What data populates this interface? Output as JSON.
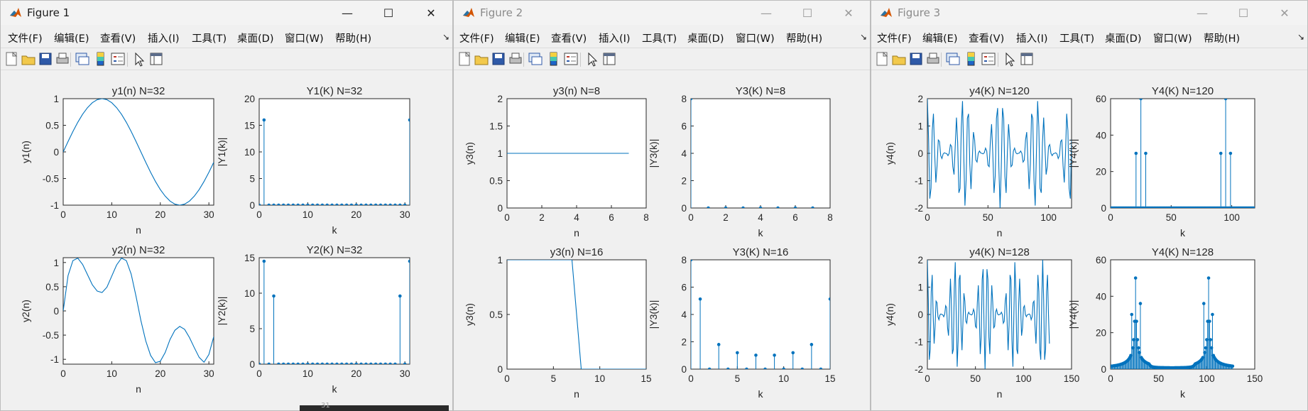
{
  "menu": [
    "文件(F)",
    "编辑(E)",
    "查看(V)",
    "插入(I)",
    "工具(T)",
    "桌面(D)",
    "窗口(W)",
    "帮助(H)"
  ],
  "toolbar_icons": [
    "new-figure-icon",
    "open-file-icon",
    "save-icon",
    "print-icon",
    "link-plot-icon",
    "colorbar-icon",
    "legend-icon",
    "edit-plot-icon",
    "property-inspector-icon"
  ],
  "background_fragment": {
    "text": "31"
  },
  "windows": [
    {
      "title": "Figure 1",
      "active": true,
      "axes": [
        {
          "title": "y1(n) N=32",
          "xlabel": "n",
          "ylabel": "y1(n)",
          "xlim": [
            0,
            31
          ],
          "ylim": [
            -1,
            1
          ],
          "xticks": [
            "0",
            "10",
            "20",
            "30"
          ],
          "yticks": [
            "-1",
            "-0.5",
            "0",
            "0.5",
            "1"
          ]
        },
        {
          "title": "Y1(K) N=32",
          "xlabel": "k",
          "ylabel": "|Y1(k)|",
          "xlim": [
            0,
            31
          ],
          "ylim": [
            0,
            20
          ],
          "xticks": [
            "0",
            "10",
            "20",
            "30"
          ],
          "yticks": [
            "0",
            "5",
            "10",
            "15",
            "20"
          ]
        },
        {
          "title": "y2(n) N=32",
          "xlabel": "n",
          "ylabel": "y2(n)",
          "xlim": [
            0,
            31
          ],
          "ylim": [
            -1.1,
            1.1
          ],
          "xticks": [
            "0",
            "10",
            "20",
            "30"
          ],
          "yticks": [
            "-1",
            "-0.5",
            "0",
            "0.5",
            "1"
          ]
        },
        {
          "title": "Y2(K) N=32",
          "xlabel": "k",
          "ylabel": "|Y2(k)|",
          "xlim": [
            0,
            31
          ],
          "ylim": [
            0,
            15
          ],
          "xticks": [
            "0",
            "10",
            "20",
            "30"
          ],
          "yticks": [
            "0",
            "5",
            "10",
            "15"
          ]
        }
      ]
    },
    {
      "title": "Figure 2",
      "active": false,
      "axes": [
        {
          "title": "y3(n) N=8",
          "xlabel": "n",
          "ylabel": "y3(n)",
          "xlim": [
            0,
            8
          ],
          "ylim": [
            0,
            2
          ],
          "xticks": [
            "0",
            "2",
            "4",
            "6",
            "8"
          ],
          "yticks": [
            "0",
            "0.5",
            "1",
            "1.5",
            "2"
          ]
        },
        {
          "title": "Y3(K) N=8",
          "xlabel": "k",
          "ylabel": "|Y3(k)|",
          "xlim": [
            0,
            8
          ],
          "ylim": [
            0,
            8
          ],
          "xticks": [
            "0",
            "2",
            "4",
            "6",
            "8"
          ],
          "yticks": [
            "0",
            "2",
            "4",
            "6",
            "8"
          ]
        },
        {
          "title": "y3(n) N=16",
          "xlabel": "n",
          "ylabel": "y3(n)",
          "xlim": [
            0,
            15
          ],
          "ylim": [
            0,
            1
          ],
          "xticks": [
            "0",
            "5",
            "10",
            "15"
          ],
          "yticks": [
            "0",
            "0.5",
            "1"
          ]
        },
        {
          "title": "Y3(K) N=16",
          "xlabel": "k",
          "ylabel": "|Y3(k)|",
          "xlim": [
            0,
            15
          ],
          "ylim": [
            0,
            8
          ],
          "xticks": [
            "0",
            "5",
            "10",
            "15"
          ],
          "yticks": [
            "0",
            "2",
            "4",
            "6",
            "8"
          ]
        }
      ]
    },
    {
      "title": "Figure 3",
      "active": false,
      "axes": [
        {
          "title": "y4(K) N=120",
          "xlabel": "n",
          "ylabel": "y4(n)",
          "xlim": [
            0,
            119
          ],
          "ylim": [
            -2,
            2
          ],
          "xticks": [
            "0",
            "50",
            "100"
          ],
          "yticks": [
            "-2",
            "-1",
            "0",
            "1",
            "2"
          ]
        },
        {
          "title": "Y4(K) N=120",
          "xlabel": "k",
          "ylabel": "|Y4(k)|",
          "xlim": [
            0,
            119
          ],
          "ylim": [
            0,
            60
          ],
          "xticks": [
            "0",
            "50",
            "100"
          ],
          "yticks": [
            "0",
            "20",
            "40",
            "60"
          ]
        },
        {
          "title": "y4(K) N=128",
          "xlabel": "n",
          "ylabel": "y4(n)",
          "xlim": [
            0,
            150
          ],
          "ylim": [
            -2,
            2
          ],
          "xticks": [
            "0",
            "50",
            "100",
            "150"
          ],
          "yticks": [
            "-2",
            "-1",
            "0",
            "1",
            "2"
          ]
        },
        {
          "title": "Y4(K) N=128",
          "xlabel": "k",
          "ylabel": "|Y4(k)|",
          "xlim": [
            0,
            150
          ],
          "ylim": [
            0,
            60
          ],
          "xticks": [
            "0",
            "50",
            "100",
            "150"
          ],
          "yticks": [
            "0",
            "20",
            "40",
            "60"
          ]
        }
      ]
    }
  ],
  "chart_data": [
    {
      "type": "line",
      "title": "y1(n) N=32",
      "xlabel": "n",
      "ylabel": "y1(n)",
      "xlim": [
        0,
        31
      ],
      "ylim": [
        -1,
        1
      ],
      "x": [
        0,
        1,
        2,
        3,
        4,
        5,
        6,
        7,
        8,
        9,
        10,
        11,
        12,
        13,
        14,
        15,
        16,
        17,
        18,
        19,
        20,
        21,
        22,
        23,
        24,
        25,
        26,
        27,
        28,
        29,
        30,
        31
      ],
      "y": [
        0,
        0.195,
        0.383,
        0.556,
        0.707,
        0.831,
        0.924,
        0.981,
        1,
        0.981,
        0.924,
        0.831,
        0.707,
        0.556,
        0.383,
        0.195,
        0,
        -0.195,
        -0.383,
        -0.556,
        -0.707,
        -0.831,
        -0.924,
        -0.981,
        -1,
        -0.981,
        -0.924,
        -0.831,
        -0.707,
        -0.556,
        -0.383,
        -0.195
      ]
    },
    {
      "type": "stem",
      "title": "Y1(K) N=32",
      "xlabel": "k",
      "ylabel": "|Y1(k)|",
      "xlim": [
        0,
        31
      ],
      "ylim": [
        0,
        20
      ],
      "x": [
        0,
        1,
        2,
        3,
        4,
        5,
        6,
        7,
        8,
        9,
        10,
        11,
        12,
        13,
        14,
        15,
        16,
        17,
        18,
        19,
        20,
        21,
        22,
        23,
        24,
        25,
        26,
        27,
        28,
        29,
        30,
        31
      ],
      "y": [
        0,
        16,
        0,
        0,
        0,
        0,
        0,
        0,
        0,
        0,
        0,
        0,
        0,
        0,
        0,
        0,
        0,
        0,
        0,
        0,
        0,
        0,
        0,
        0,
        0,
        0,
        0,
        0,
        0,
        0,
        0,
        16
      ]
    },
    {
      "type": "line",
      "title": "y2(n) N=32",
      "xlabel": "n",
      "ylabel": "y2(n)",
      "xlim": [
        0,
        31
      ],
      "ylim": [
        -1.1,
        1.1
      ],
      "x": [
        0,
        1,
        2,
        3,
        4,
        5,
        6,
        7,
        8,
        9,
        10,
        11,
        12,
        13,
        14,
        15,
        16,
        17,
        18,
        19,
        20,
        21,
        22,
        23,
        24,
        25,
        26,
        27,
        28,
        29,
        30,
        31
      ],
      "y": [
        0,
        0.73,
        1.04,
        1.09,
        0.96,
        0.75,
        0.54,
        0.41,
        0.38,
        0.49,
        0.72,
        0.95,
        1.09,
        1.04,
        0.76,
        0.3,
        -0.2,
        -0.62,
        -0.92,
        -1.07,
        -1.04,
        -0.86,
        -0.59,
        -0.4,
        -0.32,
        -0.38,
        -0.55,
        -0.76,
        -0.96,
        -1.06,
        -0.9,
        -0.53
      ]
    },
    {
      "type": "stem",
      "title": "Y2(K) N=32",
      "xlabel": "k",
      "ylabel": "|Y2(k)|",
      "xlim": [
        0,
        31
      ],
      "ylim": [
        0,
        15
      ],
      "x": [
        0,
        1,
        2,
        3,
        4,
        5,
        6,
        7,
        8,
        9,
        10,
        11,
        12,
        13,
        14,
        15,
        16,
        17,
        18,
        19,
        20,
        21,
        22,
        23,
        24,
        25,
        26,
        27,
        28,
        29,
        30,
        31
      ],
      "y": [
        0,
        14.5,
        0,
        9.6,
        0,
        0,
        0,
        0,
        0,
        0,
        0,
        0,
        0,
        0,
        0,
        0,
        0,
        0,
        0,
        0,
        0,
        0,
        0,
        0,
        0,
        0,
        0,
        0,
        0,
        9.6,
        0,
        14.5
      ]
    },
    {
      "type": "line",
      "title": "y3(n) N=8",
      "xlabel": "n",
      "ylabel": "y3(n)",
      "xlim": [
        0,
        8
      ],
      "ylim": [
        0,
        2
      ],
      "x": [
        0,
        1,
        2,
        3,
        4,
        5,
        6,
        7
      ],
      "y": [
        1,
        1,
        1,
        1,
        1,
        1,
        1,
        1
      ]
    },
    {
      "type": "stem",
      "title": "Y3(K) N=8",
      "xlabel": "k",
      "ylabel": "|Y3(k)|",
      "xlim": [
        0,
        8
      ],
      "ylim": [
        0,
        8
      ],
      "x": [
        0,
        1,
        2,
        3,
        4,
        5,
        6,
        7
      ],
      "y": [
        8,
        0,
        0,
        0,
        0,
        0,
        0,
        0
      ]
    },
    {
      "type": "line",
      "title": "y3(n) N=16",
      "xlabel": "n",
      "ylabel": "y3(n)",
      "xlim": [
        0,
        15
      ],
      "ylim": [
        0,
        1
      ],
      "x": [
        0,
        1,
        2,
        3,
        4,
        5,
        6,
        7,
        8,
        9,
        10,
        11,
        12,
        13,
        14,
        15
      ],
      "y": [
        1,
        1,
        1,
        1,
        1,
        1,
        1,
        1,
        0,
        0,
        0,
        0,
        0,
        0,
        0,
        0
      ]
    },
    {
      "type": "stem",
      "title": "Y3(K) N=16",
      "xlabel": "k",
      "ylabel": "|Y3(k)|",
      "xlim": [
        0,
        15
      ],
      "ylim": [
        0,
        8
      ],
      "x": [
        0,
        1,
        2,
        3,
        4,
        5,
        6,
        7,
        8,
        9,
        10,
        11,
        12,
        13,
        14,
        15
      ],
      "y": [
        8,
        5.13,
        0,
        1.8,
        0,
        1.2,
        0,
        1.02,
        0,
        1.02,
        0,
        1.2,
        0,
        1.8,
        0,
        5.13
      ]
    },
    {
      "type": "line",
      "title": "y4(K) N=120",
      "xlabel": "n",
      "ylabel": "y4(n)",
      "xlim": [
        0,
        119
      ],
      "ylim": [
        -2,
        2
      ],
      "x_range": [
        0,
        119
      ],
      "formula": "cos(2*pi*25*n/120)+0.5*cos(2*pi*21*n/120)+0.5*cos(2*pi*29*n/120)"
    },
    {
      "type": "stem",
      "title": "Y4(K) N=120",
      "xlabel": "k",
      "ylabel": "|Y4(k)|",
      "xlim": [
        0,
        119
      ],
      "ylim": [
        0,
        60
      ],
      "x": [
        21,
        25,
        29,
        91,
        95,
        99
      ],
      "y": [
        30,
        60,
        30,
        30,
        60,
        30
      ],
      "other_y": 0
    },
    {
      "type": "line",
      "title": "y4(K) N=128",
      "xlabel": "n",
      "ylabel": "y4(n)",
      "xlim": [
        0,
        150
      ],
      "ylim": [
        -2,
        2
      ],
      "x_range": [
        0,
        127
      ],
      "formula": "cos(2*pi*25*n/120)+0.5*cos(2*pi*21*n/120)+0.5*cos(2*pi*29*n/120)"
    },
    {
      "type": "stem",
      "title": "Y4(K) N=128",
      "xlabel": "k",
      "ylabel": "|Y4(k)|",
      "xlim": [
        0,
        150
      ],
      "ylim": [
        0,
        60
      ],
      "x_range": [
        0,
        127
      ],
      "peaks": {
        "22": 30,
        "26": 50,
        "31": 36,
        "97": 36,
        "102": 50,
        "106": 30
      }
    }
  ]
}
